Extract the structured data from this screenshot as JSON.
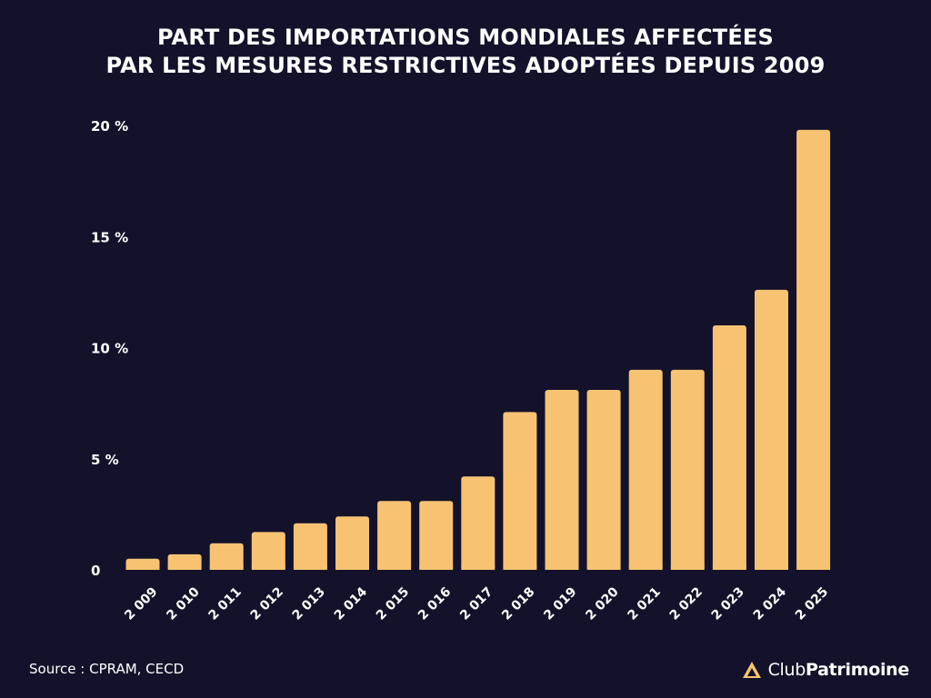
{
  "title": {
    "line1": "PART DES IMPORTATIONS MONDIALES AFFECTÉES",
    "line2": "PAR LES MESURES RESTRICTIVES ADOPTÉES DEPUIS 2009"
  },
  "source": "Source : CPRAM, CECD",
  "brand": {
    "light": "Club",
    "bold": "Patrimoine",
    "logo_icon": "triangle-logo-icon"
  },
  "colors": {
    "background": "#13122a",
    "bar": "#f7c272",
    "text": "#ffffff"
  },
  "chart_data": {
    "type": "bar",
    "categories": [
      "2 009",
      "2 010",
      "2 011",
      "2 012",
      "2 013",
      "2 014",
      "2 015",
      "2 016",
      "2 017",
      "2 018",
      "2 019",
      "2 020",
      "2 021",
      "2 022",
      "2 023",
      "2 024",
      "2 025"
    ],
    "values": [
      0.5,
      0.7,
      1.2,
      1.7,
      2.1,
      2.4,
      3.1,
      3.1,
      4.2,
      7.1,
      8.1,
      8.1,
      9.0,
      9.0,
      11.0,
      12.6,
      19.8
    ],
    "yticks": [
      {
        "value": 0,
        "label": "0"
      },
      {
        "value": 5,
        "label": "5 %"
      },
      {
        "value": 10,
        "label": "10 %"
      },
      {
        "value": 15,
        "label": "15 %"
      },
      {
        "value": 20,
        "label": "20 %"
      }
    ],
    "ylim": [
      0,
      20
    ],
    "grid": false,
    "legend": "none"
  }
}
